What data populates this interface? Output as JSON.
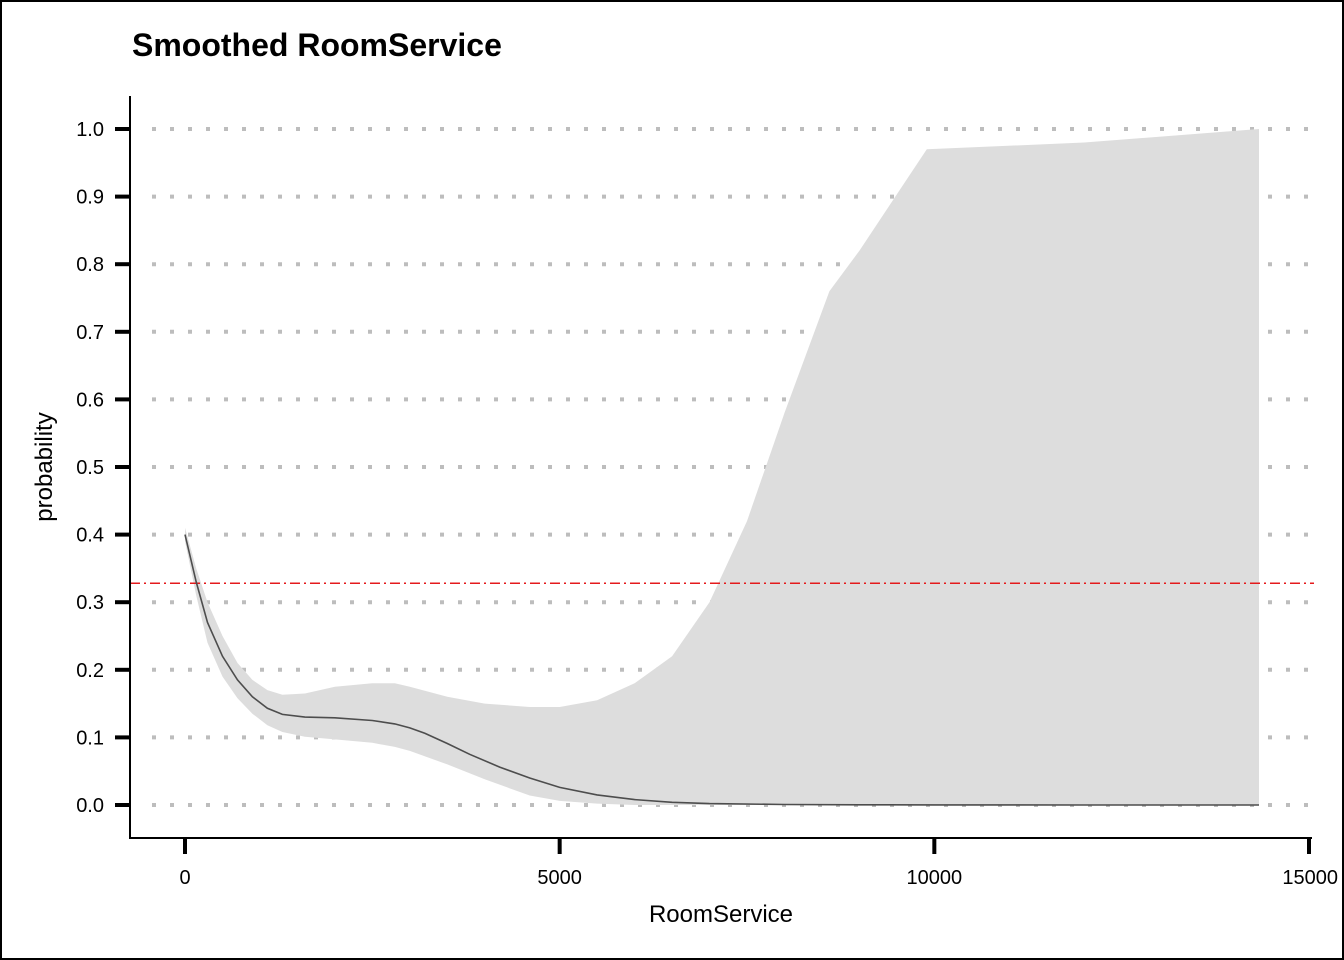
{
  "chart_data": {
    "type": "line",
    "title": "Smoothed RoomService",
    "xlabel": "RoomService",
    "ylabel": "probability",
    "xlim": [
      -750,
      15000
    ],
    "ylim": [
      -0.05,
      1.05
    ],
    "xticks": [
      0,
      5000,
      10000,
      15000
    ],
    "xtick_labels": [
      "0",
      "5000",
      "10000",
      "15000"
    ],
    "yticks": [
      0.0,
      0.1,
      0.2,
      0.3,
      0.4,
      0.5,
      0.6,
      0.7,
      0.8,
      0.9,
      1.0
    ],
    "ytick_labels": [
      "0.0",
      "0.1",
      "0.2",
      "0.3",
      "0.4",
      "0.5",
      "0.6",
      "0.7",
      "0.8",
      "0.9",
      "1.0"
    ],
    "grid": {
      "y": true,
      "x": false,
      "style": "dotted"
    },
    "reference_line": {
      "y": 0.328,
      "color": "#e41a1c",
      "style": "dashdot"
    },
    "series": [
      {
        "x": [
          0,
          150,
          300,
          500,
          700,
          900,
          1100,
          1300,
          1600,
          2000,
          2500,
          2800,
          3000,
          3200,
          3500,
          3800,
          4200,
          4600,
          5000,
          5500,
          6000,
          6500,
          7000,
          8000,
          9000,
          10000,
          12000,
          14333
        ],
        "y": [
          0.4,
          0.33,
          0.27,
          0.22,
          0.185,
          0.16,
          0.143,
          0.134,
          0.13,
          0.129,
          0.125,
          0.12,
          0.114,
          0.106,
          0.091,
          0.075,
          0.056,
          0.04,
          0.026,
          0.015,
          0.008,
          0.004,
          0.002,
          0.0008,
          0.0003,
          0.0001,
          0.0,
          0.0
        ],
        "color": "#4d4d4d"
      }
    ],
    "confidence_band": {
      "x": [
        0,
        150,
        300,
        500,
        700,
        900,
        1100,
        1300,
        1600,
        2000,
        2500,
        2800,
        3000,
        3500,
        4000,
        4600,
        5000,
        5500,
        6000,
        6500,
        7000,
        7500,
        8000,
        8600,
        9000,
        9900,
        12000,
        14333
      ],
      "upper": [
        0.41,
        0.35,
        0.3,
        0.25,
        0.21,
        0.185,
        0.17,
        0.163,
        0.165,
        0.175,
        0.18,
        0.18,
        0.175,
        0.16,
        0.15,
        0.145,
        0.145,
        0.155,
        0.18,
        0.22,
        0.3,
        0.42,
        0.58,
        0.76,
        0.82,
        0.97,
        0.98,
        1.0
      ],
      "lower": [
        0.39,
        0.31,
        0.24,
        0.19,
        0.158,
        0.135,
        0.118,
        0.108,
        0.101,
        0.097,
        0.092,
        0.086,
        0.08,
        0.06,
        0.038,
        0.014,
        0.006,
        0.002,
        0.0,
        0.0,
        0.0,
        0.0,
        0.0,
        0.0,
        0.0,
        0.0,
        0.0,
        0.0
      ],
      "color": "#dddddd"
    }
  }
}
